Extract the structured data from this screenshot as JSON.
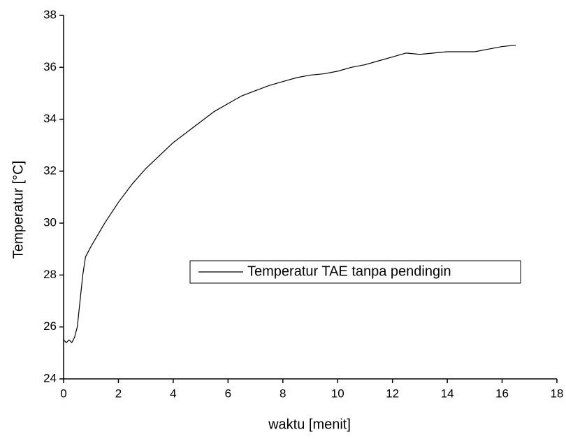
{
  "chart_data": {
    "type": "line",
    "xlabel": "waktu [menit]",
    "ylabel": "Temperatur [°C]",
    "x": [
      0,
      0.1,
      0.2,
      0.3,
      0.4,
      0.5,
      0.6,
      0.7,
      0.8,
      1.0,
      1.5,
      2,
      2.5,
      3,
      3.5,
      4,
      4.5,
      5,
      5.5,
      6,
      6.5,
      7,
      7.5,
      8,
      8.5,
      9,
      9.5,
      10,
      10.5,
      11,
      11.5,
      12,
      12.5,
      13,
      13.5,
      14,
      14.5,
      15,
      15.5,
      16,
      16.5
    ],
    "series": [
      {
        "name": "Temperatur TAE tanpa pendingin",
        "color": "#000000",
        "values": [
          25.5,
          25.4,
          25.5,
          25.4,
          25.6,
          26.0,
          27.0,
          28.0,
          28.7,
          29.1,
          30.0,
          30.8,
          31.5,
          32.1,
          32.6,
          33.1,
          33.5,
          33.9,
          34.3,
          34.6,
          34.9,
          35.1,
          35.3,
          35.45,
          35.6,
          35.7,
          35.75,
          35.85,
          36.0,
          36.1,
          36.25,
          36.4,
          36.55,
          36.5,
          36.55,
          36.6,
          36.6,
          36.6,
          36.7,
          36.8,
          36.85
        ]
      }
    ],
    "xlim": [
      0,
      18
    ],
    "xticks": [
      0,
      2,
      4,
      6,
      8,
      10,
      12,
      14,
      16,
      18
    ],
    "ylim": [
      24,
      38
    ],
    "yticks": [
      24,
      26,
      28,
      30,
      32,
      34,
      36,
      38
    ],
    "grid": false
  }
}
